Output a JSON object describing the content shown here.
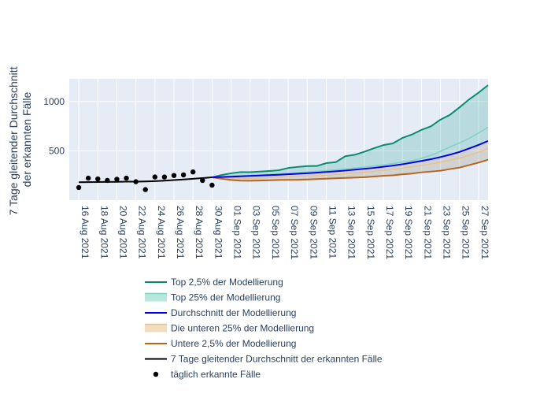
{
  "chart_data": {
    "type": "line",
    "ylabel_lines": [
      "7 Tage gleitender Durchschnitt",
      "der erkannten Fälle"
    ],
    "xlabel": "",
    "xlim": [
      "2021-08-15",
      "2021-09-28"
    ],
    "ylim": [
      0,
      1230
    ],
    "yticks": [
      500,
      1000
    ],
    "xticks": [
      {
        "date": "2021-08-16",
        "label": "16 Aug 2021"
      },
      {
        "date": "2021-08-18",
        "label": "18 Aug 2021"
      },
      {
        "date": "2021-08-20",
        "label": "20 Aug 2021"
      },
      {
        "date": "2021-08-22",
        "label": "22 Aug 2021"
      },
      {
        "date": "2021-08-24",
        "label": "24 Aug 2021"
      },
      {
        "date": "2021-08-26",
        "label": "26 Aug 2021"
      },
      {
        "date": "2021-08-28",
        "label": "28 Aug 2021"
      },
      {
        "date": "2021-08-30",
        "label": "30 Aug 2021"
      },
      {
        "date": "2021-09-01",
        "label": "01 Sep 2021"
      },
      {
        "date": "2021-09-03",
        "label": "03 Sep 2021"
      },
      {
        "date": "2021-09-05",
        "label": "05 Sep 2021"
      },
      {
        "date": "2021-09-07",
        "label": "07 Sep 2021"
      },
      {
        "date": "2021-09-09",
        "label": "09 Sep 2021"
      },
      {
        "date": "2021-09-11",
        "label": "11 Sep 2021"
      },
      {
        "date": "2021-09-13",
        "label": "13 Sep 2021"
      },
      {
        "date": "2021-09-15",
        "label": "15 Sep 2021"
      },
      {
        "date": "2021-09-17",
        "label": "17 Sep 2021"
      },
      {
        "date": "2021-09-19",
        "label": "19 Sep 2021"
      },
      {
        "date": "2021-09-21",
        "label": "21 Sep 2021"
      },
      {
        "date": "2021-09-23",
        "label": "23 Sep 2021"
      },
      {
        "date": "2021-09-25",
        "label": "25 Sep 2021"
      },
      {
        "date": "2021-09-27",
        "label": "27 Sep 2021"
      }
    ],
    "forecast_x": [
      "2021-08-30",
      "2021-08-31",
      "2021-09-01",
      "2021-09-02",
      "2021-09-03",
      "2021-09-04",
      "2021-09-05",
      "2021-09-06",
      "2021-09-07",
      "2021-09-08",
      "2021-09-09",
      "2021-09-10",
      "2021-09-11",
      "2021-09-12",
      "2021-09-13",
      "2021-09-14",
      "2021-09-15",
      "2021-09-16",
      "2021-09-17",
      "2021-09-18",
      "2021-09-19",
      "2021-09-20",
      "2021-09-21",
      "2021-09-22",
      "2021-09-23",
      "2021-09-24",
      "2021-09-25",
      "2021-09-26",
      "2021-09-27",
      "2021-09-28"
    ],
    "series": [
      {
        "name": "Top 2,5% der Modellierung",
        "kind": "line",
        "color": "#0a8a6e",
        "values": [
          232,
          255,
          272,
          285,
          284,
          290,
          296,
          303,
          326,
          337,
          345,
          346,
          375,
          385,
          445,
          460,
          491,
          526,
          558,
          575,
          630,
          665,
          712,
          748,
          816,
          865,
          940,
          1020,
          1089,
          1165
        ]
      },
      {
        "name": "Top 25% der Modellierung",
        "kind": "band",
        "color": "#7dd3c0",
        "fill": "rgba(32,160,140,0.22)",
        "values": [
          232,
          238,
          243,
          248,
          252,
          256,
          262,
          267,
          273,
          279,
          286,
          293,
          300,
          308,
          317,
          326,
          335,
          346,
          357,
          370,
          385,
          400,
          425,
          455,
          495,
          540,
          580,
          625,
          680,
          740
        ]
      },
      {
        "name": "Durchschnitt der Modellierung",
        "kind": "line",
        "color": "#0000ee",
        "values": [
          232,
          235,
          238,
          242,
          246,
          250,
          254,
          258,
          263,
          268,
          273,
          279,
          286,
          293,
          300,
          309,
          318,
          327,
          338,
          350,
          364,
          380,
          397,
          415,
          437,
          461,
          489,
          524,
          560,
          600
        ]
      },
      {
        "name": "Die unteren 25% der Modellierung",
        "kind": "band",
        "color": "#e8c28a",
        "fill": "rgba(150,130,110,0.25)",
        "values": [
          232,
          225,
          220,
          220,
          222,
          225,
          230,
          235,
          240,
          243,
          246,
          250,
          256,
          262,
          268,
          275,
          283,
          292,
          302,
          313,
          325,
          338,
          352,
          368,
          385,
          405,
          428,
          455,
          485,
          520
        ]
      },
      {
        "name": "Untere 2,5% der Modellierung",
        "kind": "line",
        "color": "#b5651d",
        "values": [
          232,
          218,
          205,
          198,
          197,
          199,
          202,
          205,
          206,
          207,
          210,
          214,
          218,
          222,
          226,
          229,
          233,
          240,
          247,
          252,
          262,
          270,
          282,
          290,
          298,
          315,
          330,
          355,
          380,
          410
        ]
      },
      {
        "name": "7 Tage gleitender Durchschnitt der erkannten Fälle",
        "kind": "line",
        "color": "#000000",
        "x": [
          "2021-08-16",
          "2021-08-17",
          "2021-08-18",
          "2021-08-19",
          "2021-08-20",
          "2021-08-21",
          "2021-08-22",
          "2021-08-23",
          "2021-08-24",
          "2021-08-25",
          "2021-08-26",
          "2021-08-27",
          "2021-08-28",
          "2021-08-29",
          "2021-08-30"
        ],
        "values": [
          182,
          183,
          184,
          185,
          186,
          188,
          188,
          190,
          193,
          198,
          204,
          210,
          217,
          224,
          232
        ]
      },
      {
        "name": "täglich erkannte Fälle",
        "kind": "markers",
        "color": "#000000",
        "x": [
          "2021-08-16",
          "2021-08-17",
          "2021-08-18",
          "2021-08-19",
          "2021-08-20",
          "2021-08-21",
          "2021-08-22",
          "2021-08-23",
          "2021-08-24",
          "2021-08-25",
          "2021-08-26",
          "2021-08-27",
          "2021-08-28",
          "2021-08-29",
          "2021-08-30"
        ],
        "values": [
          128,
          223,
          215,
          200,
          212,
          223,
          187,
          107,
          235,
          235,
          250,
          256,
          286,
          200,
          152
        ]
      }
    ],
    "legend_position": "bottom"
  }
}
